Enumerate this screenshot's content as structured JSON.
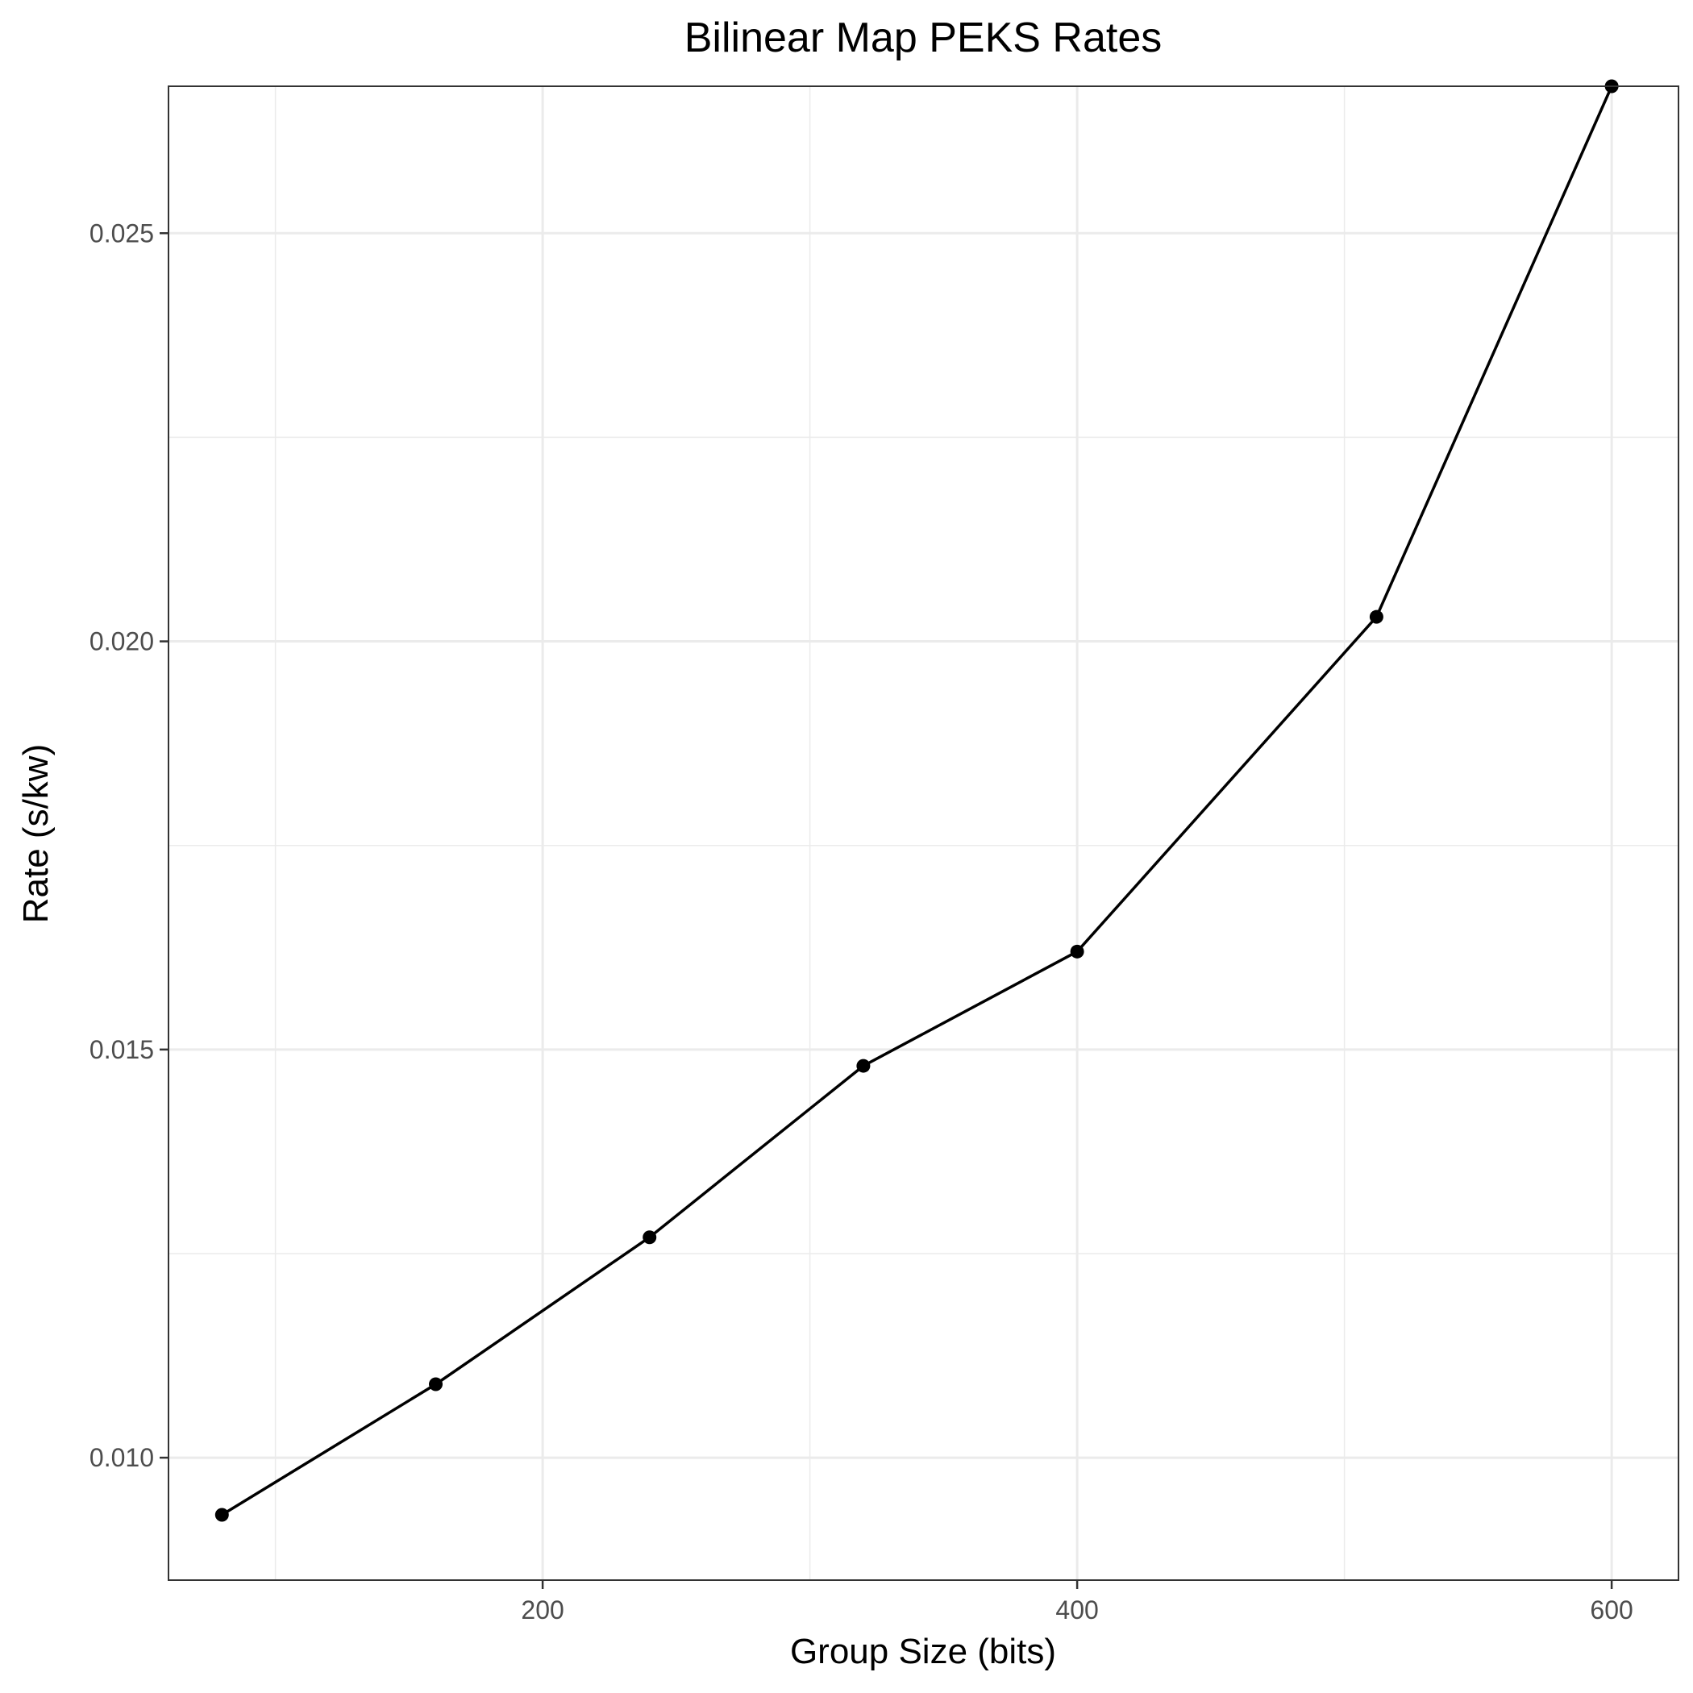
{
  "chart_data": {
    "type": "line",
    "title": "Bilinear Map PEKS Rates",
    "xlabel": "Group Size (bits)",
    "ylabel": "Rate (s/kw)",
    "xlim": [
      60,
      625
    ],
    "ylim": [
      0.0085,
      0.0268
    ],
    "x_ticks": [
      200,
      400,
      600
    ],
    "x_tick_labels": [
      "200",
      "400",
      "600"
    ],
    "x_minor_ticks": [
      100,
      300,
      500
    ],
    "y_ticks": [
      0.01,
      0.015,
      0.02,
      0.025
    ],
    "y_tick_labels": [
      "0.010",
      "0.015",
      "0.020",
      "0.025"
    ],
    "y_minor_ticks": [
      0.0125,
      0.0175,
      0.0225
    ],
    "grid": true,
    "legend": "none",
    "series": [
      {
        "color": "#000000",
        "x": [
          80,
          160,
          240,
          320,
          400,
          512,
          600
        ],
        "y": [
          0.0093,
          0.0109,
          0.0127,
          0.0148,
          0.0162,
          0.0203,
          0.0268
        ]
      }
    ]
  }
}
